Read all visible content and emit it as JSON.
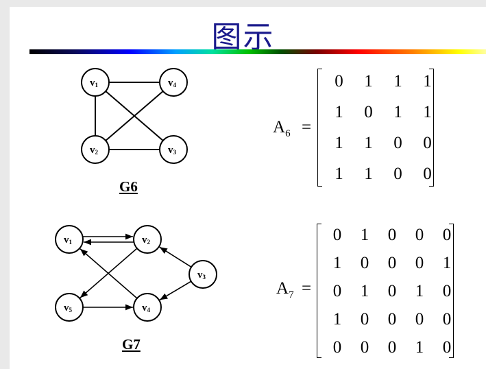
{
  "title": "图示",
  "graph6": {
    "label": "G6",
    "nodes": [
      {
        "id": "v1",
        "text": "v",
        "sub": "1"
      },
      {
        "id": "v4",
        "text": "v",
        "sub": "4"
      },
      {
        "id": "v2",
        "text": "v",
        "sub": "2"
      },
      {
        "id": "v3",
        "text": "v",
        "sub": "3"
      }
    ],
    "edges": [
      [
        "v1",
        "v4"
      ],
      [
        "v1",
        "v2"
      ],
      [
        "v1",
        "v3"
      ],
      [
        "v4",
        "v2"
      ],
      [
        "v2",
        "v3"
      ]
    ],
    "matrix_name": "A",
    "matrix_sub": "6",
    "matrix": [
      [
        0,
        1,
        1,
        1
      ],
      [
        1,
        0,
        1,
        1
      ],
      [
        1,
        1,
        0,
        0
      ],
      [
        1,
        1,
        0,
        0
      ]
    ]
  },
  "graph7": {
    "label": "G7",
    "nodes": [
      {
        "id": "v1",
        "text": "v",
        "sub": "1"
      },
      {
        "id": "v2",
        "text": "v",
        "sub": "2"
      },
      {
        "id": "v3",
        "text": "v",
        "sub": "3"
      },
      {
        "id": "v5",
        "text": "v",
        "sub": "5"
      },
      {
        "id": "v4",
        "text": "v",
        "sub": "4"
      }
    ],
    "arcs": [
      [
        "v1",
        "v2"
      ],
      [
        "v2",
        "v1"
      ],
      [
        "v2",
        "v5"
      ],
      [
        "v5",
        "v4"
      ],
      [
        "v4",
        "v1"
      ],
      [
        "v3",
        "v2"
      ],
      [
        "v3",
        "v4"
      ]
    ],
    "matrix_name": "A",
    "matrix_sub": "7",
    "matrix": [
      [
        0,
        1,
        0,
        0,
        0
      ],
      [
        1,
        0,
        0,
        0,
        1
      ],
      [
        0,
        1,
        0,
        1,
        0
      ],
      [
        1,
        0,
        0,
        0,
        0
      ],
      [
        0,
        0,
        0,
        1,
        0
      ]
    ]
  },
  "equals": "="
}
